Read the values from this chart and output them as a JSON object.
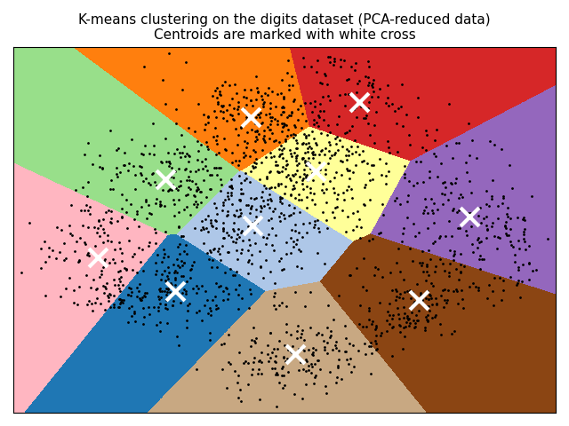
{
  "title_line1": "K-means clustering on the digits dataset (PCA-reduced data)",
  "title_line2": "Centroids are marked with white cross",
  "n_clusters": 10,
  "n_components": 2,
  "figsize": [
    6.4,
    4.8
  ],
  "dpi": 100,
  "colors": [
    "#aec7e8",
    "#ffff99",
    "#8B4513",
    "#98df8a",
    "#9467bd",
    "#ffb6c1",
    "#c8a882",
    "#1f77b4",
    "#ff7f0e",
    "#d62728"
  ],
  "centroid_marker": "x",
  "centroid_color": "white",
  "centroid_markersize": 15,
  "centroid_markeredgewidth": 3,
  "point_color": "black",
  "point_size": 4,
  "point_alpha": 0.8
}
